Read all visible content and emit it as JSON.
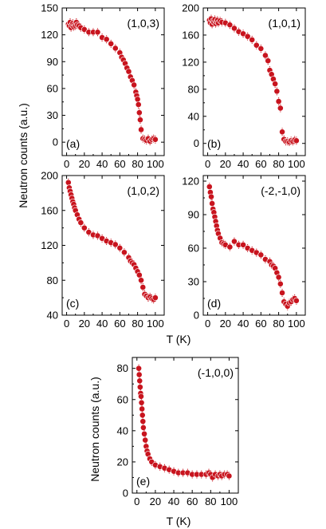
{
  "figure": {
    "ylabel_top": "Neutron counts (a.u.)",
    "ylabel_bottom": "Neutron counts (a.u.)",
    "xlabel_top": "T (K)",
    "xlabel_bottom": "T (K)"
  },
  "chart_data": [
    {
      "type": "scatter",
      "id": "a",
      "panel_label": "(a)",
      "reflection": "(1,0,3)",
      "xlim": [
        -5,
        110
      ],
      "ylim": [
        -15,
        150
      ],
      "xticks": [
        0,
        20,
        40,
        60,
        80,
        100
      ],
      "yticks": [
        0,
        30,
        60,
        90,
        120,
        150
      ],
      "marker_color": "#c8141e",
      "x": [
        2,
        3,
        4,
        5,
        6,
        7,
        8,
        9,
        10,
        11,
        12,
        14,
        16,
        20,
        25,
        30,
        35,
        40,
        45,
        50,
        55,
        60,
        62,
        64,
        66,
        68,
        70,
        72,
        74,
        76,
        78,
        79,
        80,
        81,
        82,
        83,
        84,
        86,
        88,
        90,
        92,
        94,
        96,
        98,
        100
      ],
      "y": [
        132,
        130,
        134,
        128,
        131,
        133,
        129,
        132,
        130,
        134,
        131,
        130,
        128,
        126,
        123,
        123,
        123,
        117,
        115,
        110,
        105,
        100,
        95,
        92,
        88,
        83,
        79,
        73,
        69,
        64,
        56,
        52,
        48,
        42,
        33,
        25,
        14,
        4,
        3,
        2,
        4,
        1,
        3,
        4,
        3
      ]
    },
    {
      "type": "scatter",
      "id": "b",
      "panel_label": "(b)",
      "reflection": "(1,0,1)",
      "xlim": [
        -5,
        110
      ],
      "ylim": [
        -18,
        200
      ],
      "xticks": [
        0,
        20,
        40,
        60,
        80,
        100
      ],
      "yticks": [
        0,
        40,
        80,
        120,
        160,
        200
      ],
      "marker_color": "#c8141e",
      "x": [
        2,
        3,
        4,
        5,
        6,
        7,
        8,
        9,
        10,
        11,
        12,
        14,
        16,
        20,
        25,
        30,
        35,
        40,
        45,
        50,
        55,
        60,
        65,
        68,
        70,
        72,
        74,
        76,
        78,
        80,
        82,
        84,
        86,
        88,
        90,
        92,
        94,
        96,
        98,
        100
      ],
      "y": [
        182,
        178,
        184,
        176,
        181,
        179,
        183,
        177,
        180,
        182,
        178,
        181,
        179,
        178,
        175,
        170,
        165,
        162,
        158,
        153,
        145,
        140,
        130,
        122,
        108,
        102,
        95,
        88,
        77,
        62,
        52,
        17,
        6,
        3,
        3,
        2,
        4,
        3,
        5,
        4
      ]
    },
    {
      "type": "scatter",
      "id": "c",
      "panel_label": "(c)",
      "reflection": "(1,0,2)",
      "xlim": [
        -5,
        110
      ],
      "ylim": [
        40,
        200
      ],
      "xticks": [
        0,
        20,
        40,
        60,
        80,
        100
      ],
      "yticks": [
        40,
        80,
        120,
        160,
        200
      ],
      "marker_color": "#c8141e",
      "x": [
        2,
        3,
        4,
        5,
        6,
        7,
        8,
        9,
        10,
        12,
        14,
        16,
        20,
        25,
        30,
        35,
        40,
        45,
        50,
        55,
        60,
        65,
        70,
        72,
        74,
        76,
        78,
        80,
        82,
        84,
        86,
        88,
        90,
        92,
        94,
        96,
        98,
        100
      ],
      "y": [
        192,
        186,
        182,
        178,
        174,
        170,
        167,
        163,
        160,
        155,
        150,
        146,
        140,
        135,
        132,
        131,
        128,
        125,
        123,
        121,
        117,
        112,
        106,
        102,
        100,
        98,
        94,
        90,
        86,
        80,
        72,
        64,
        62,
        60,
        61,
        59,
        58,
        60
      ]
    },
    {
      "type": "scatter",
      "id": "d",
      "panel_label": "(d)",
      "reflection": "(-2,-1,0)",
      "xlim": [
        -5,
        110
      ],
      "ylim": [
        0,
        125
      ],
      "xticks": [
        0,
        20,
        40,
        60,
        80,
        100
      ],
      "yticks": [
        0,
        30,
        60,
        90,
        120
      ],
      "marker_color": "#c8141e",
      "x": [
        2,
        3,
        4,
        5,
        6,
        7,
        8,
        9,
        10,
        11,
        12,
        14,
        16,
        18,
        20,
        25,
        30,
        35,
        40,
        45,
        50,
        55,
        60,
        65,
        70,
        72,
        74,
        76,
        78,
        80,
        82,
        84,
        86,
        88,
        90,
        92,
        94,
        96,
        98,
        100
      ],
      "y": [
        115,
        110,
        106,
        100,
        95,
        92,
        88,
        84,
        80,
        76,
        73,
        69,
        65,
        64,
        63,
        61,
        66,
        63,
        63,
        60,
        58,
        56,
        54,
        50,
        48,
        45,
        44,
        42,
        38,
        34,
        28,
        20,
        12,
        10,
        8,
        11,
        12,
        14,
        15,
        13
      ]
    },
    {
      "type": "scatter",
      "id": "e",
      "panel_label": "(e)",
      "reflection": "(-1,0,0)",
      "xlim": [
        -5,
        110
      ],
      "ylim": [
        0,
        87
      ],
      "xticks": [
        0,
        20,
        40,
        60,
        80,
        100
      ],
      "yticks": [
        0,
        20,
        40,
        60,
        80
      ],
      "marker_color": "#c8141e",
      "x": [
        2,
        2.5,
        3,
        3.5,
        4,
        4.5,
        5,
        5.5,
        6,
        6.5,
        7,
        8,
        9,
        10,
        11,
        12,
        14,
        16,
        20,
        25,
        30,
        35,
        40,
        45,
        50,
        55,
        60,
        65,
        70,
        75,
        78,
        80,
        82,
        85,
        88,
        90,
        92,
        95,
        98,
        100
      ],
      "y": [
        80,
        76,
        72,
        68,
        64,
        62,
        58,
        54,
        50,
        46,
        42,
        38,
        34,
        30,
        27,
        25,
        22,
        20,
        18,
        17,
        16,
        15,
        14,
        13,
        13,
        13,
        12,
        12,
        12,
        12,
        13,
        12,
        10,
        12,
        11,
        12,
        11,
        12,
        12,
        11
      ]
    }
  ]
}
